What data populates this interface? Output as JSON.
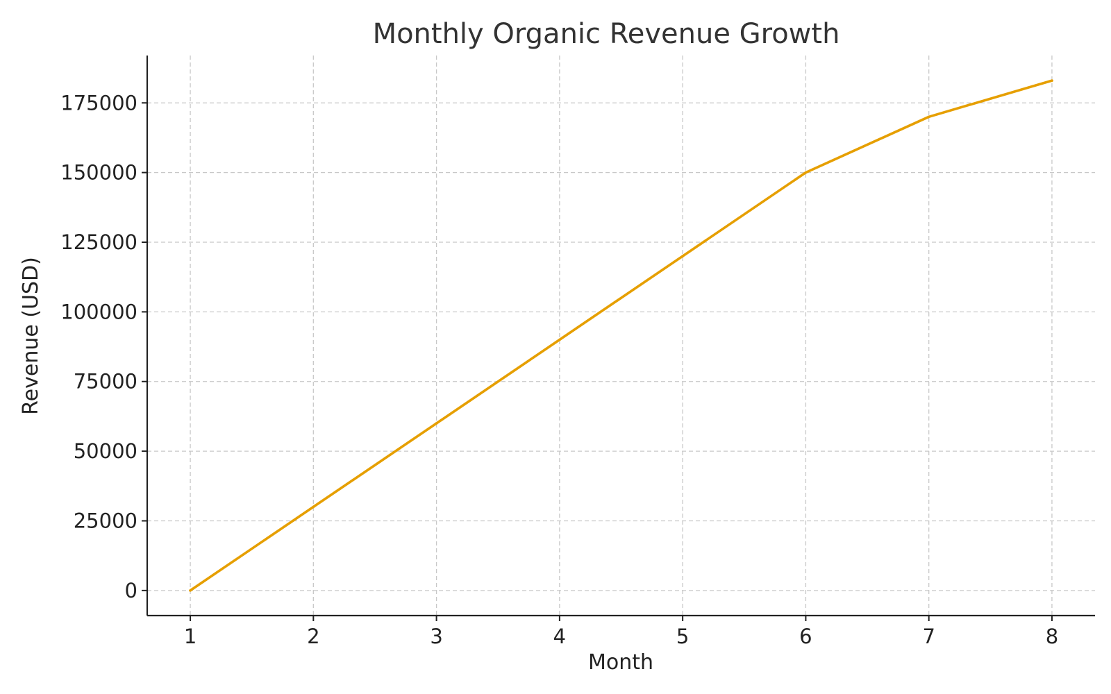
{
  "chart_data": {
    "type": "line",
    "title": "Monthly Organic Revenue Growth",
    "xlabel": "Month",
    "ylabel": "Revenue (USD)",
    "x": [
      1,
      2,
      3,
      4,
      5,
      6,
      7,
      8
    ],
    "xlim": [
      0.65,
      8.35
    ],
    "ylim": [
      -9000,
      192000
    ],
    "y_ticks": [
      0,
      25000,
      50000,
      75000,
      100000,
      125000,
      150000,
      175000
    ],
    "grid": true,
    "series": [
      {
        "values": [
          0,
          30000,
          60000,
          90000,
          120000,
          150000,
          170000,
          183000
        ],
        "color": "#E69F00"
      }
    ]
  }
}
